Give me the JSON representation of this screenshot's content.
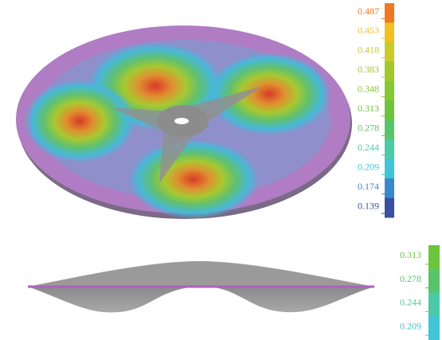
{
  "colorbars": [
    {
      "labels": [
        "0.487",
        "0.453",
        "0.418",
        "0.383",
        "0.348",
        "0.313",
        "0.278",
        "0.244",
        "0.209",
        "0.174",
        "0.139"
      ],
      "colors": [
        "#f07820",
        "#f2c020",
        "#c8cc28",
        "#a4c82c",
        "#86c834",
        "#6cc43c",
        "#58c46a",
        "#4ccaa8",
        "#40c4d8",
        "#3a88cc",
        "#3a50a0"
      ]
    },
    {
      "labels": [
        "0.313",
        "0.278",
        "0.244",
        "0.209"
      ],
      "colors": [
        "#6cc43c",
        "#58c46a",
        "#4ccaa8",
        "#40c4d8"
      ]
    }
  ]
}
